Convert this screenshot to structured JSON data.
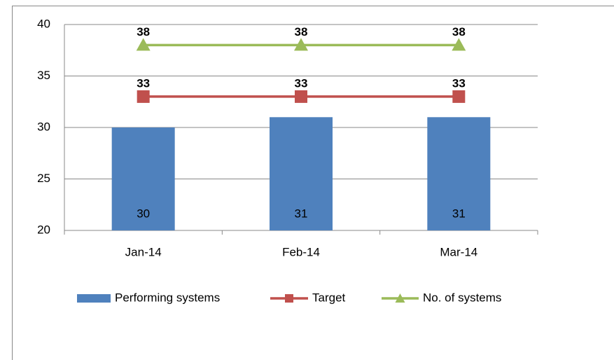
{
  "chart_data": {
    "type": "bar",
    "categories": [
      "Jan-14",
      "Feb-14",
      "Mar-14"
    ],
    "series": [
      {
        "name": "Performing systems",
        "type": "bar",
        "color": "#4f81bd",
        "values": [
          30,
          31,
          31
        ]
      },
      {
        "name": "Target",
        "type": "line",
        "marker": "square",
        "color": "#c0504d",
        "values": [
          33,
          33,
          33
        ]
      },
      {
        "name": "No. of systems",
        "type": "line",
        "marker": "triangle",
        "color": "#9bbb59",
        "values": [
          38,
          38,
          38
        ]
      }
    ],
    "ylim": [
      20,
      40
    ],
    "yticks": [
      20,
      25,
      30,
      35,
      40
    ],
    "grid": true,
    "legend": "bottom"
  }
}
